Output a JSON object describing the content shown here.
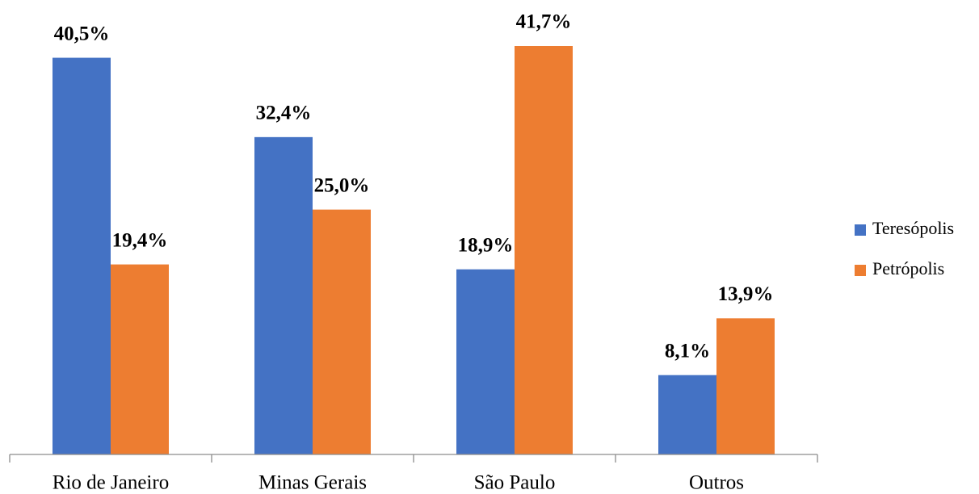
{
  "chart_data": {
    "type": "bar",
    "categories": [
      "Rio de Janeiro",
      "Minas Gerais",
      "São Paulo",
      "Outros"
    ],
    "series": [
      {
        "name": "Teresópolis",
        "color": "#4472c4",
        "values": [
          40.5,
          32.4,
          18.9,
          8.1
        ],
        "value_labels": [
          "40,5%",
          "32,4%",
          "18,9%",
          "8,1%"
        ]
      },
      {
        "name": "Petrópolis",
        "color": "#ed7d31",
        "values": [
          19.4,
          25.0,
          41.7,
          13.9
        ],
        "value_labels": [
          "19,4%",
          "25,0%",
          "41,7%",
          "13,9%"
        ]
      }
    ],
    "legend": "right"
  }
}
